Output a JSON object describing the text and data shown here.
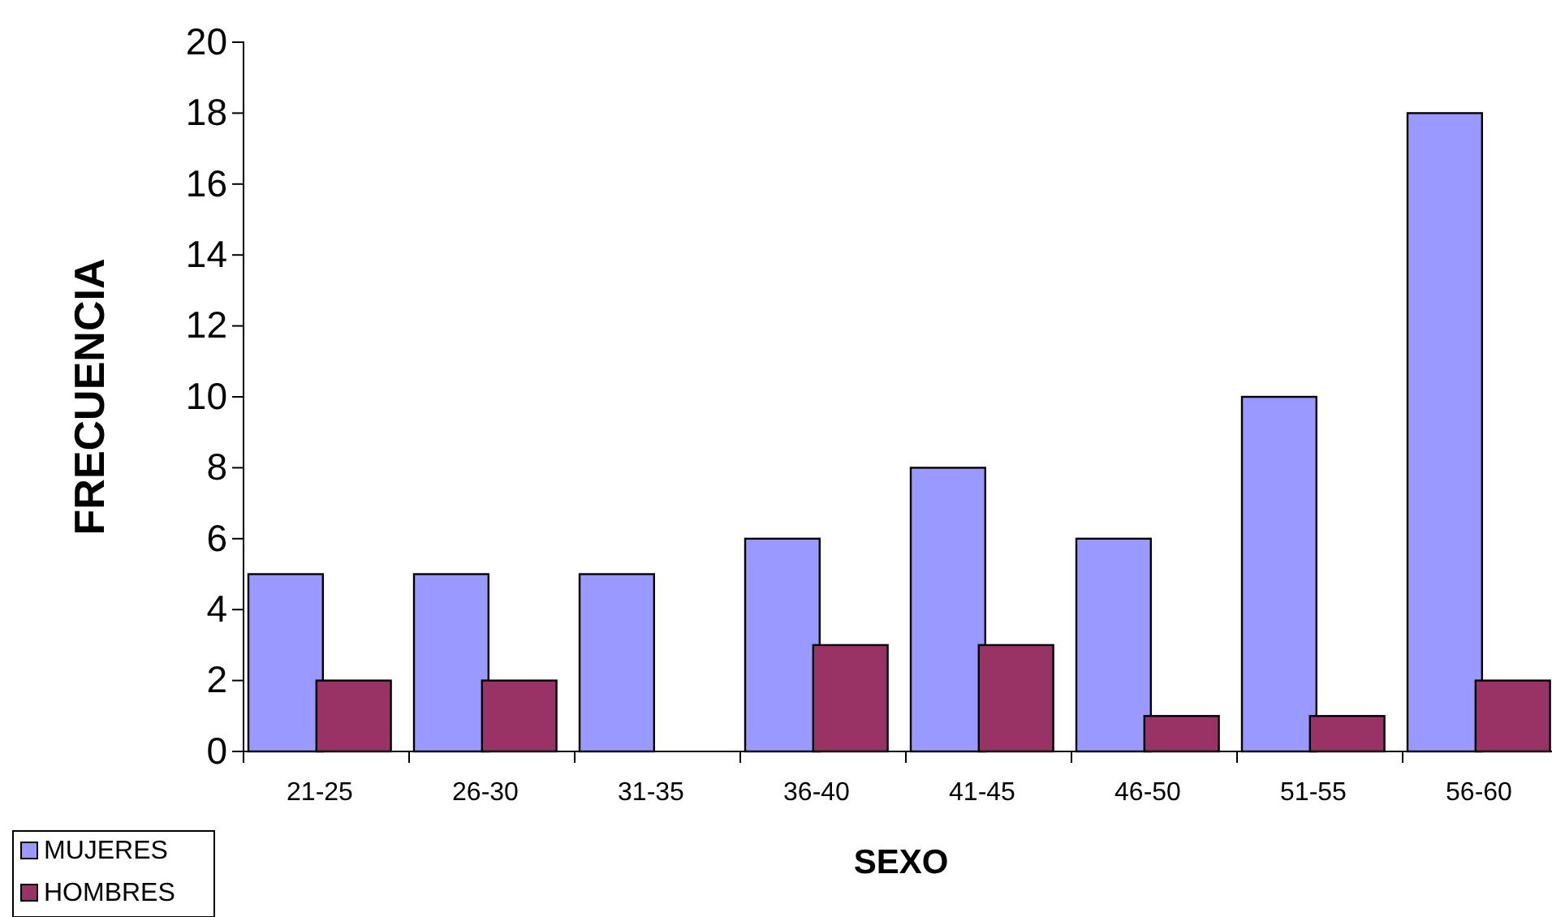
{
  "chart_data": {
    "type": "bar",
    "xlabel": "SEXO",
    "ylabel": "FRECUENCIA",
    "categories": [
      "21-25",
      "26-30",
      "31-35",
      "36-40",
      "41-45",
      "46-50",
      "51-55",
      "56-60"
    ],
    "series": [
      {
        "name": "MUJERES",
        "color": "#9999ff",
        "values": [
          5,
          5,
          5,
          6,
          8,
          6,
          10,
          18
        ]
      },
      {
        "name": "HOMBRES",
        "color": "#993366",
        "values": [
          2,
          2,
          0,
          3,
          3,
          1,
          1,
          2
        ]
      }
    ],
    "ylim": [
      0,
      20
    ],
    "yticks": [
      0,
      2,
      4,
      6,
      8,
      10,
      12,
      14,
      16,
      18,
      20
    ],
    "legend": "bottom left"
  }
}
